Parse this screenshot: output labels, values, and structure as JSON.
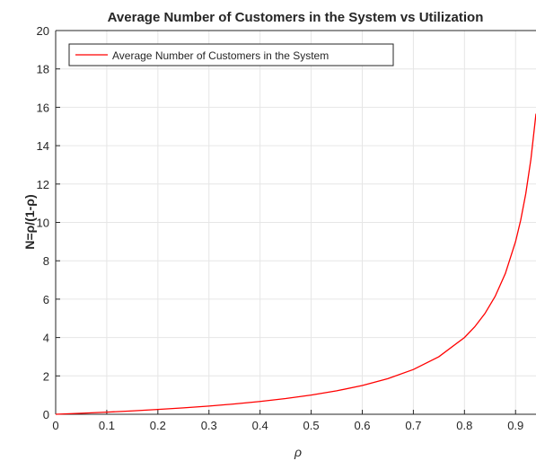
{
  "chart_data": {
    "type": "line",
    "title": "Average Number of Customers in the System vs Utilization",
    "xlabel": "ρ",
    "ylabel": "N=ρ/(1-ρ)",
    "xlim": [
      0,
      0.94
    ],
    "ylim": [
      0,
      20
    ],
    "x_ticks": [
      0,
      0.1,
      0.2,
      0.3,
      0.4,
      0.5,
      0.6,
      0.7,
      0.8,
      0.9
    ],
    "x_tick_labels": [
      "0",
      "0.1",
      "0.2",
      "0.3",
      "0.4",
      "0.5",
      "0.6",
      "0.7",
      "0.8",
      "0.9"
    ],
    "y_ticks": [
      0,
      2,
      4,
      6,
      8,
      10,
      12,
      14,
      16,
      18,
      20
    ],
    "y_tick_labels": [
      "0",
      "2",
      "4",
      "6",
      "8",
      "10",
      "12",
      "14",
      "16",
      "18",
      "20"
    ],
    "grid": true,
    "legend_position": "top-left",
    "series": [
      {
        "name": "Average Number of Customers in the System",
        "color": "#ff0000",
        "x": [
          0,
          0.05,
          0.1,
          0.15,
          0.2,
          0.25,
          0.3,
          0.35,
          0.4,
          0.45,
          0.5,
          0.55,
          0.6,
          0.65,
          0.7,
          0.75,
          0.8,
          0.82,
          0.84,
          0.86,
          0.88,
          0.9,
          0.91,
          0.92,
          0.93,
          0.94
        ],
        "y": [
          0,
          0.053,
          0.111,
          0.176,
          0.25,
          0.333,
          0.429,
          0.538,
          0.667,
          0.818,
          1.0,
          1.222,
          1.5,
          1.857,
          2.333,
          3.0,
          4.0,
          4.556,
          5.25,
          6.143,
          7.333,
          9.0,
          10.111,
          11.5,
          13.286,
          15.667
        ]
      }
    ]
  }
}
